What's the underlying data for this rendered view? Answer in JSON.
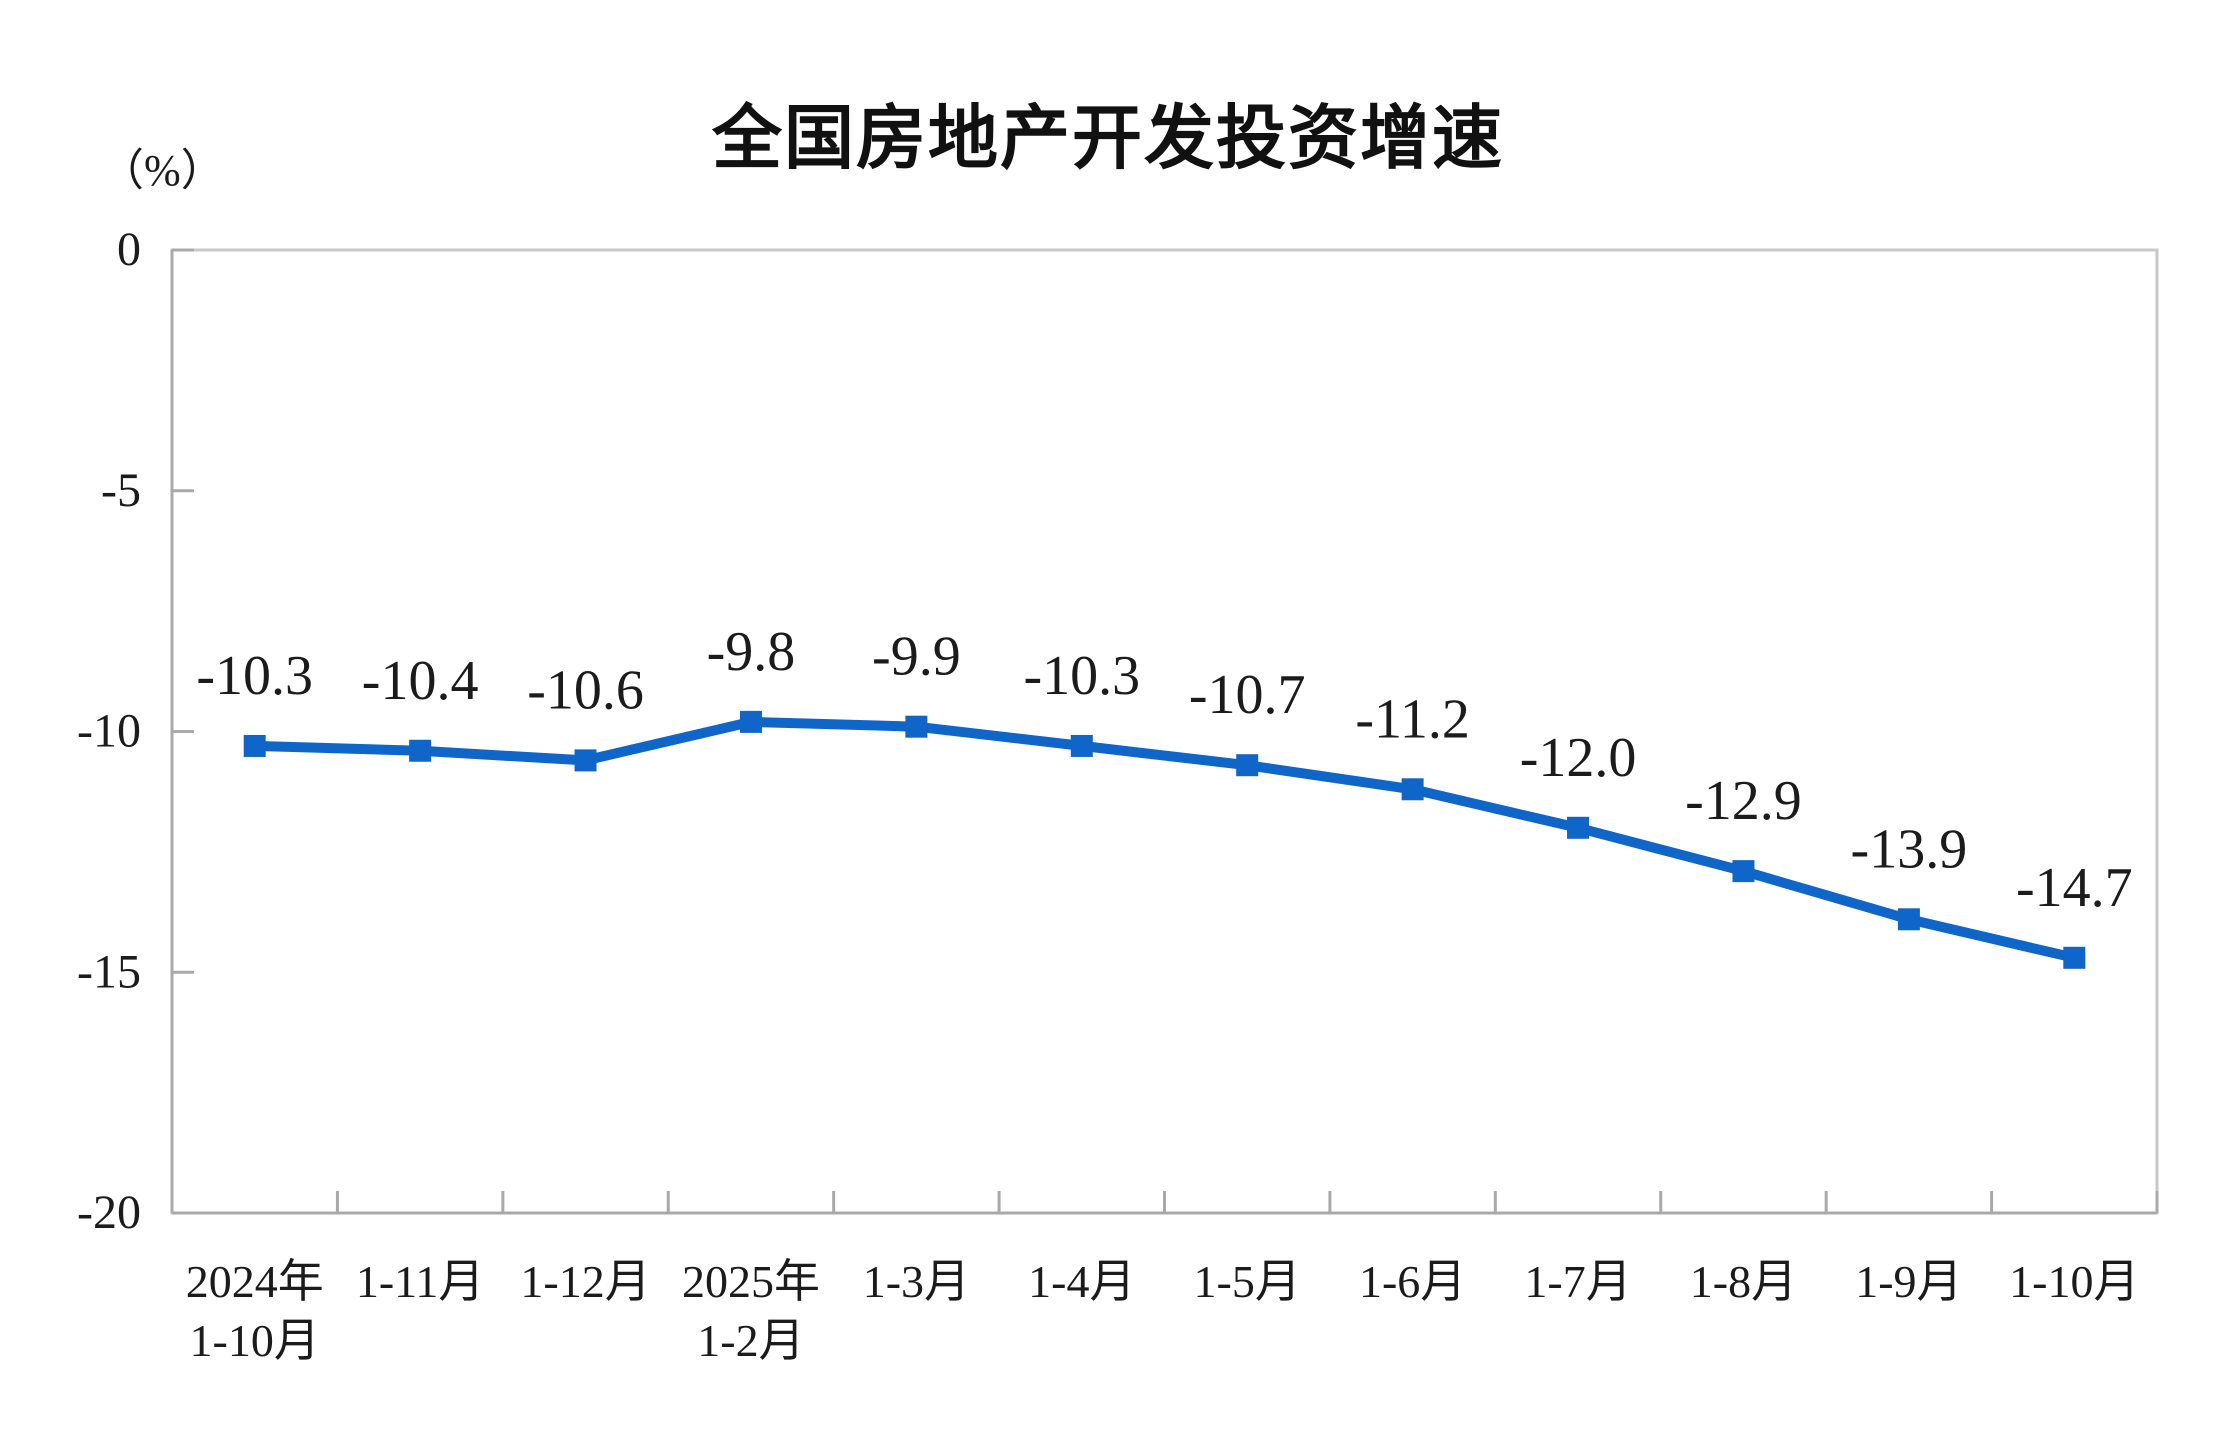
{
  "chart_data": {
    "type": "line",
    "title": "全国房地产开发投资增速",
    "unit_label": "（%）",
    "categories": [
      [
        "2024年",
        "1-10月"
      ],
      [
        "1-11月"
      ],
      [
        "1-12月"
      ],
      [
        "2025年",
        "1-2月"
      ],
      [
        "1-3月"
      ],
      [
        "1-4月"
      ],
      [
        "1-5月"
      ],
      [
        "1-6月"
      ],
      [
        "1-7月"
      ],
      [
        "1-8月"
      ],
      [
        "1-9月"
      ],
      [
        "1-10月"
      ]
    ],
    "values": [
      -10.3,
      -10.4,
      -10.6,
      -9.8,
      -9.9,
      -10.3,
      -10.7,
      -11.2,
      -12.0,
      -12.9,
      -13.9,
      -14.7
    ],
    "data_labels": [
      "-10.3",
      "-10.4",
      "-10.6",
      "-9.8",
      "-9.9",
      "-10.3",
      "-10.7",
      "-11.2",
      "-12.0",
      "-12.9",
      "-13.9",
      "-14.7"
    ],
    "y_ticks": [
      0,
      -5,
      -10,
      -15,
      -20
    ],
    "y_tick_labels": [
      "0",
      "-5",
      "-10",
      "-15",
      "-20"
    ],
    "ylim": [
      -20,
      0
    ],
    "grid": false,
    "legend": "none",
    "line_color": "#1065C8",
    "marker": "square",
    "text_color": "#1b1b1b",
    "axis_color": "#a9a9a9",
    "border_color": "#c8c8c8"
  }
}
